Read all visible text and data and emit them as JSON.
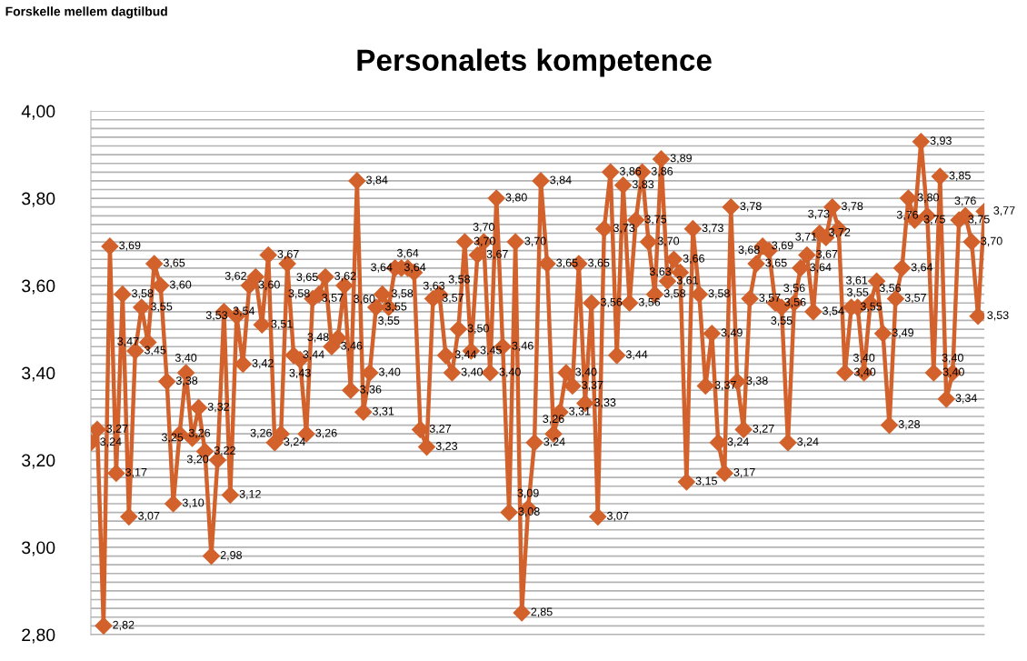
{
  "chart_data": {
    "type": "line",
    "title": "Personalets kompetence",
    "annotations": [
      "Forskelle mellem dagtilbud"
    ],
    "categories": [
      null,
      null,
      null,
      null,
      null,
      null,
      null,
      null,
      null,
      null,
      null,
      null,
      null,
      null,
      null,
      null,
      null,
      null,
      null,
      null,
      null,
      null,
      null,
      null,
      null,
      null,
      null,
      null,
      null,
      null,
      null,
      null,
      null,
      null,
      null,
      null,
      null,
      null,
      null,
      null,
      null,
      null,
      null,
      null,
      null,
      null,
      null,
      null,
      null,
      null,
      null,
      null,
      null,
      null,
      null,
      null,
      null,
      null,
      null,
      null,
      null,
      null,
      null,
      null,
      null,
      null,
      null,
      null,
      null,
      null,
      null,
      null,
      null,
      null,
      null,
      null,
      null,
      null,
      null,
      null,
      null,
      null,
      null,
      null,
      null,
      null,
      null,
      null,
      null,
      null,
      null,
      null,
      null,
      null,
      null,
      null,
      null,
      null,
      null,
      null,
      null,
      null,
      null,
      null,
      null,
      null,
      null,
      null,
      null,
      null,
      null,
      null,
      null,
      null,
      null,
      null,
      null,
      null,
      null,
      null,
      null,
      null,
      null,
      null,
      null,
      null,
      null,
      null,
      null,
      null,
      null,
      null,
      null,
      null,
      null,
      null,
      null,
      null,
      null,
      null,
      null,
      null
    ],
    "series": [
      {
        "color": "#d2612b",
        "values": [
          3.24,
          3.27,
          2.82,
          3.69,
          3.17,
          3.58,
          3.07,
          3.45,
          3.55,
          3.47,
          3.65,
          3.6,
          3.38,
          3.1,
          3.26,
          3.4,
          3.25,
          3.32,
          3.22,
          2.98,
          3.2,
          3.54,
          3.12,
          3.53,
          3.42,
          3.6,
          3.62,
          3.51,
          3.67,
          3.24,
          3.26,
          3.65,
          3.44,
          3.43,
          3.26,
          3.57,
          3.58,
          3.62,
          3.46,
          3.48,
          3.6,
          3.36,
          3.84,
          3.31,
          3.4,
          3.55,
          3.58,
          3.55,
          3.64,
          3.64,
          3.64,
          3.63,
          3.27,
          3.23,
          3.57,
          3.58,
          3.44,
          3.4,
          3.5,
          3.7,
          3.45,
          3.67,
          3.7,
          3.4,
          3.8,
          3.46,
          3.08,
          3.7,
          2.85,
          3.09,
          3.24,
          3.84,
          3.65,
          3.26,
          3.31,
          3.4,
          3.37,
          3.65,
          3.33,
          3.56,
          3.07,
          3.73,
          3.86,
          3.44,
          3.83,
          3.56,
          3.75,
          3.86,
          3.7,
          3.58,
          3.89,
          3.61,
          3.66,
          3.63,
          3.15,
          3.73,
          3.58,
          3.37,
          3.49,
          3.24,
          3.17,
          3.78,
          3.38,
          3.27,
          3.57,
          3.65,
          3.69,
          3.68,
          3.56,
          3.55,
          3.24,
          3.56,
          3.64,
          3.67,
          3.54,
          3.72,
          3.71,
          3.78,
          3.73,
          3.4,
          3.55,
          3.55,
          3.4,
          3.56,
          3.61,
          3.49,
          3.28,
          3.57,
          3.64,
          3.8,
          3.75,
          3.93,
          3.76,
          3.4,
          3.85,
          3.34,
          3.4,
          3.75,
          3.76,
          3.7,
          3.53,
          3.77
        ],
        "value_labels": [
          "3,24",
          "3,27",
          "2,82",
          "3,69",
          "3,17",
          "3,58",
          "3,07",
          "3,45",
          "3,55",
          "3,47",
          "3,65",
          "3,60",
          "3,38",
          "3,10",
          "3,26",
          "3,40",
          "3,25",
          "3,32",
          "3,22",
          "2,98",
          "3,20",
          "3,54",
          "3,12",
          "3,53",
          "3,42",
          "3,60",
          "3,62",
          "3,51",
          "3,67",
          "3,24",
          "3,26",
          "3,65",
          "3,44",
          "3,43",
          "3,26",
          "3,57",
          "3,58",
          "3,62",
          "3,46",
          "3,48",
          "3,60",
          "3,36",
          "3,84",
          "3,31",
          "3,40",
          "3,55",
          "3,58",
          "3,55",
          "3,64",
          "3,64",
          "3,64",
          "3,63",
          "3,27",
          "3,23",
          "3,57",
          "3,58",
          "3,44",
          "3,40",
          "3,50",
          "3,70",
          "3,45",
          "3,67",
          "3,70",
          "3,40",
          "3,80",
          "3,46",
          "3,08",
          "3,70",
          "2,85",
          "3,09",
          "3,24",
          "3,84",
          "3,65",
          "3,26",
          "3,31",
          "3,40",
          "3,37",
          "3,65",
          "3,33",
          "3,56",
          "3,07",
          "3,73",
          "3,86",
          "3,44",
          "3,83",
          "3,56",
          "3,75",
          "3,86",
          "3,70",
          "3,58",
          "3,89",
          "3,61",
          "3,66",
          "3,63",
          "3,15",
          "3,73",
          "3,58",
          "3,37",
          "3,49",
          "3,24",
          "3,17",
          "3,78",
          "3,38",
          "3,27",
          "3,57",
          "3,65",
          "3,69",
          "3,68",
          "3,56",
          "3,55",
          "3,24",
          "3,56",
          "3,64",
          "3,67",
          "3,54",
          "3,72",
          "3,71",
          "3,78",
          "3,73",
          "3,40",
          "3,55",
          "3,55",
          "3,40",
          "3,56",
          "3,61",
          "3,49",
          "3,28",
          "3,57",
          "3,64",
          "3,80",
          "3,75",
          "3,93",
          "3,76",
          "3,40",
          "3,85",
          "3,34",
          "3,40",
          "3,75",
          "3,76",
          "3,70",
          "3,53",
          "3,77"
        ]
      }
    ],
    "ylim": [
      2.8,
      4.0
    ],
    "yticks": [
      {
        "value": 2.8,
        "label": "2,80"
      },
      {
        "value": 2.82,
        "label": null
      },
      {
        "value": 2.84,
        "label": null
      },
      {
        "value": 2.86,
        "label": null
      },
      {
        "value": 2.88,
        "label": null
      },
      {
        "value": 2.9,
        "label": null
      },
      {
        "value": 2.92,
        "label": null
      },
      {
        "value": 2.94,
        "label": null
      },
      {
        "value": 2.96,
        "label": null
      },
      {
        "value": 2.98,
        "label": null
      },
      {
        "value": 3.0,
        "label": "3,00"
      },
      {
        "value": 3.02,
        "label": null
      },
      {
        "value": 3.04,
        "label": null
      },
      {
        "value": 3.06,
        "label": null
      },
      {
        "value": 3.08,
        "label": null
      },
      {
        "value": 3.1,
        "label": null
      },
      {
        "value": 3.12,
        "label": null
      },
      {
        "value": 3.14,
        "label": null
      },
      {
        "value": 3.16,
        "label": null
      },
      {
        "value": 3.18,
        "label": null
      },
      {
        "value": 3.2,
        "label": "3,20"
      },
      {
        "value": 3.22,
        "label": null
      },
      {
        "value": 3.24,
        "label": null
      },
      {
        "value": 3.26,
        "label": null
      },
      {
        "value": 3.28,
        "label": null
      },
      {
        "value": 3.3,
        "label": null
      },
      {
        "value": 3.32,
        "label": null
      },
      {
        "value": 3.34,
        "label": null
      },
      {
        "value": 3.36,
        "label": null
      },
      {
        "value": 3.38,
        "label": null
      },
      {
        "value": 3.4,
        "label": "3,40"
      },
      {
        "value": 3.42,
        "label": null
      },
      {
        "value": 3.44,
        "label": null
      },
      {
        "value": 3.46,
        "label": null
      },
      {
        "value": 3.48,
        "label": null
      },
      {
        "value": 3.5,
        "label": null
      },
      {
        "value": 3.52,
        "label": null
      },
      {
        "value": 3.54,
        "label": null
      },
      {
        "value": 3.56,
        "label": null
      },
      {
        "value": 3.58,
        "label": null
      },
      {
        "value": 3.6,
        "label": "3,60"
      },
      {
        "value": 3.62,
        "label": null
      },
      {
        "value": 3.64,
        "label": null
      },
      {
        "value": 3.66,
        "label": null
      },
      {
        "value": 3.68,
        "label": null
      },
      {
        "value": 3.7,
        "label": null
      },
      {
        "value": 3.72,
        "label": null
      },
      {
        "value": 3.74,
        "label": null
      },
      {
        "value": 3.76,
        "label": null
      },
      {
        "value": 3.78,
        "label": null
      },
      {
        "value": 3.8,
        "label": "3,80"
      },
      {
        "value": 3.82,
        "label": null
      },
      {
        "value": 3.84,
        "label": null
      },
      {
        "value": 3.86,
        "label": null
      },
      {
        "value": 3.88,
        "label": null
      },
      {
        "value": 3.9,
        "label": null
      },
      {
        "value": 3.92,
        "label": null
      },
      {
        "value": 3.94,
        "label": null
      },
      {
        "value": 3.96,
        "label": null
      },
      {
        "value": 3.98,
        "label": null
      },
      {
        "value": 4.0,
        "label": "4,00"
      }
    ],
    "grid": "y",
    "marker": "diamond",
    "line_style": "solid"
  }
}
